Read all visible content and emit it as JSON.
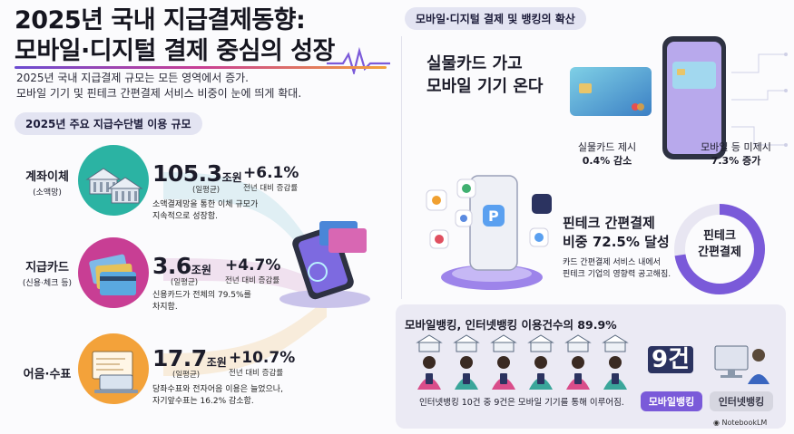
{
  "title": {
    "line1": "2025년 국내 지급결제동향:",
    "line2": "모바일·디지털 결제 중심의 성장"
  },
  "subtitle": {
    "line1": "2025년 국내 지급결제 규모는 모든 영역에서 증가.",
    "line2": "모바일 기기 및 핀테크 간편결제 서비스 비중이 눈에 띄게 확대."
  },
  "section_left": "2025년 주요 지급수단별 이용 규모",
  "rows": [
    {
      "label": "계좌이체",
      "sublabel": "(소액망)",
      "value": "105.3",
      "unit": "조원",
      "avg": "(일평균)",
      "growth": "+6.1%",
      "growth_label": "전년 대비 증감률",
      "desc1": "소액결제망을 통한 이체 규모가",
      "desc2": "지속적으로 성장함.",
      "color": "#2bb3a3"
    },
    {
      "label": "지급카드",
      "sublabel": "(신용·체크 등)",
      "value": "3.6",
      "unit": "조원",
      "avg": "(일평균)",
      "growth": "+4.7%",
      "growth_label": "전년 대비 증감률",
      "desc1": "신용카드가 전체의 79.5%를",
      "desc2": "차지함.",
      "color": "#c83e94"
    },
    {
      "label": "어음·수표",
      "sublabel": "",
      "value": "17.7",
      "unit": "조원",
      "avg": "(일평균)",
      "growth": "+10.7%",
      "growth_label": "전년 대비 증감률",
      "desc1": "당좌수표와 전자어음 이용은 늘었으나,",
      "desc2": "자기앞수표는 16.2% 감소함.",
      "color": "#f3a23a"
    }
  ],
  "section_right": "모바일·디지털 결제 및 뱅킹의 확산",
  "card_section": {
    "headline1": "실물카드 가고",
    "headline2": "모바일 기기 온다",
    "left_note1": "실물카드 제시",
    "left_note2": "0.4% 감소",
    "right_note1": "모바일 등 미제시",
    "right_note2": "7.3% 증가"
  },
  "fintech": {
    "title1": "핀테크 간편결제",
    "title2": "비중 72.5% 달성",
    "desc1": "카드 간편결제 서비스 내에서",
    "desc2": "핀테크 기업의 영향력 공고해짐.",
    "donut_label1": "핀테크",
    "donut_label2": "간편결제",
    "share": 72.5
  },
  "banking": {
    "title": "모바일뱅킹, 인터넷뱅킹 이용건수의 89.9%",
    "note": "인터넷뱅킹 10건 중 9건은 모바일 기기를 통해 이루어짐.",
    "count": "9건",
    "mobile_label": "모바일뱅킹",
    "internet_label": "인터넷뱅킹"
  },
  "watermark": "NotebookLM",
  "colors": {
    "teal": "#2bb3a3",
    "magenta": "#c83e94",
    "orange": "#f3a23a",
    "purple": "#6b4bd1",
    "navy": "#1e2455"
  }
}
